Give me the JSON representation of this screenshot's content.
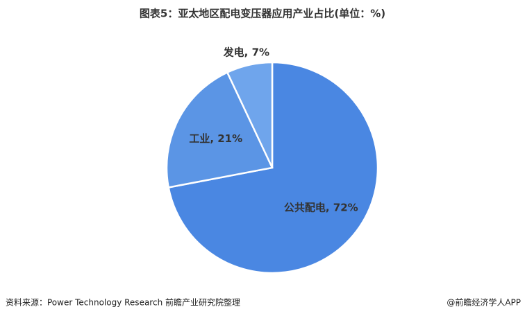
{
  "chart_data": {
    "type": "pie",
    "title": "图表5：亚太地区配电变压器应用产业占比(单位：%)",
    "values": [
      72,
      21,
      7
    ],
    "value_labels": [
      "公共配电, 72%",
      "工业, 21%",
      "发电, 7%"
    ],
    "colors": [
      "#4a87e2",
      "#5b95e5",
      "#6fa5ec"
    ],
    "source": "资料来源：Power Technology Research 前瞻产业研究院整理",
    "credit": "@前瞻经济学人APP"
  }
}
